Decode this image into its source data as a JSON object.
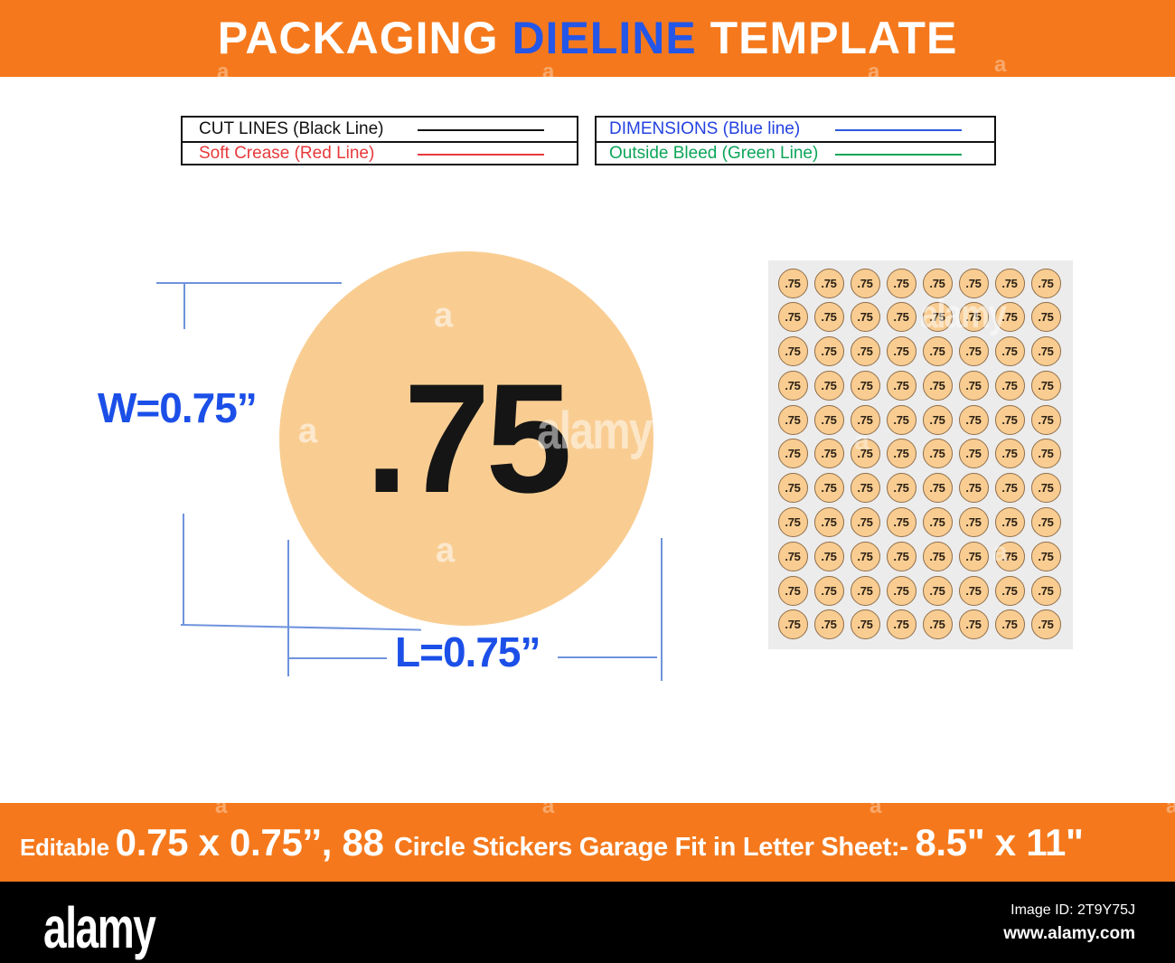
{
  "header": {
    "title_parts": [
      {
        "text": "PACKAGING ",
        "color": "#FFFFFF"
      },
      {
        "text": "DIELINE",
        "color": "#2456E8"
      },
      {
        "text": " TEMPLATE",
        "color": "#FFFFFF"
      }
    ]
  },
  "legend": {
    "left": {
      "rows": [
        {
          "label": "CUT LINES (Black Line)",
          "color": "#111111",
          "line_color": "#111111"
        },
        {
          "label": "Soft Crease (Red Line)",
          "color": "#E8393B",
          "line_color": "#E8393B"
        }
      ]
    },
    "right": {
      "rows": [
        {
          "label": "DIMENSIONS (Blue line)",
          "color": "#2442E0",
          "line_color": "#2B57E0"
        },
        {
          "label": "Outside Bleed (Green Line)",
          "color": "#0CA559",
          "line_color": "#0CA559"
        }
      ]
    }
  },
  "diagram": {
    "sticker_label": ".75",
    "width_label": "W=0.75”",
    "length_label": "L=0.75”",
    "circle_fill": "#F9CD92",
    "dimension_color": "#1B4FE8",
    "line_color": "#6F93DD"
  },
  "sheet": {
    "rows": 11,
    "cols": 8,
    "count": 88,
    "sticker_label": ".75",
    "sticker_fill": "#F9CD92"
  },
  "bottom_bar": {
    "bg": "#F5791C",
    "parts": [
      {
        "text": "Editable ",
        "size": "sm"
      },
      {
        "text": "0.75 x 0.75’’, 88 ",
        "size": "lg"
      },
      {
        "text": "Circle Stickers Garage Fit in Letter Sheet:- ",
        "size": "md"
      },
      {
        "text": "8.5\" x 11\"",
        "size": "lg"
      }
    ]
  },
  "footer": {
    "logo": "alamy",
    "image_id": "Image ID: 2T9Y75J",
    "url": "www.alamy.com"
  },
  "watermark": {
    "letter": "a",
    "word": "alamy"
  }
}
